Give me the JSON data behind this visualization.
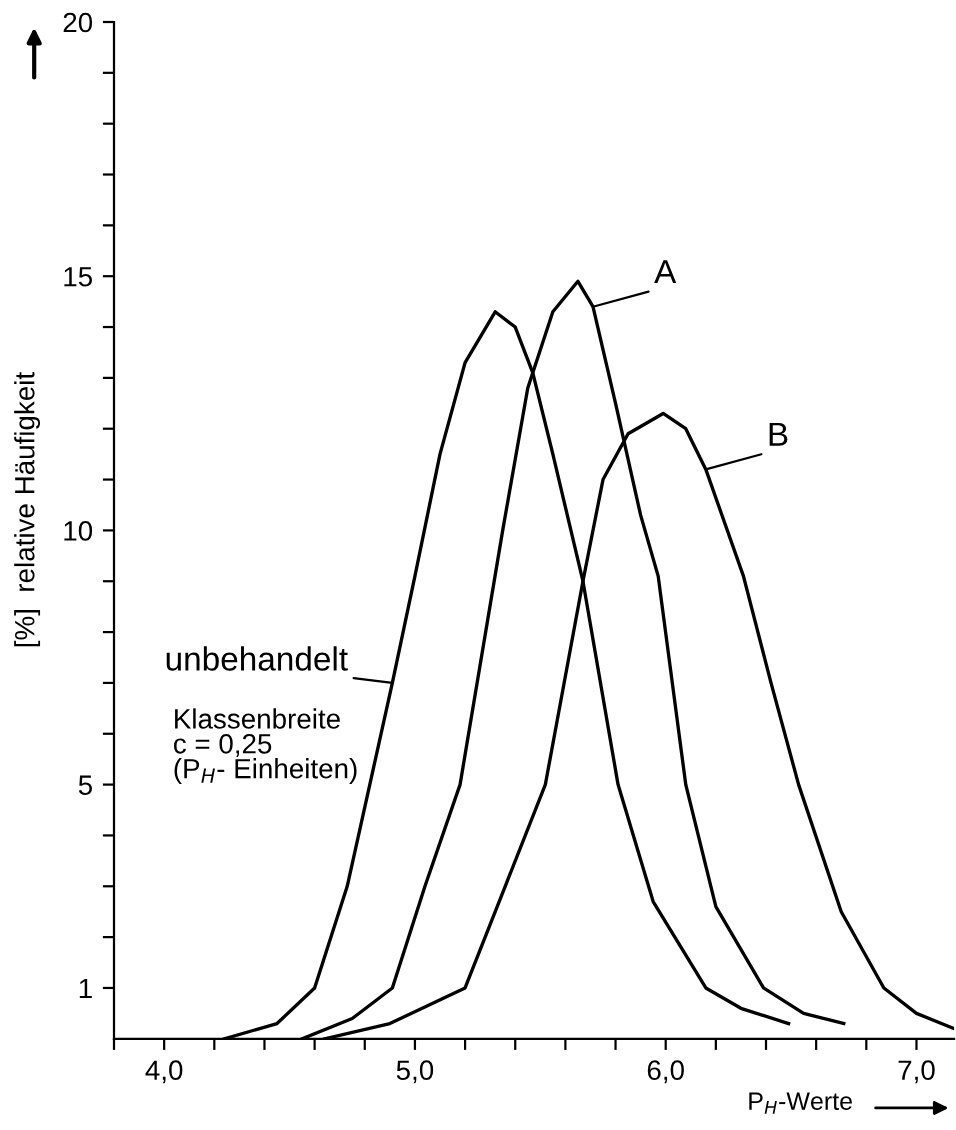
{
  "chart_data": {
    "type": "line",
    "xlabel": "P$_{H}$-Werte",
    "ylabel": "[%]  relative Häufigkeit",
    "annotations": [
      "Klassenbreite\nc = 0,25\n(P$_{H}$- Einheiten)"
    ],
    "xlim": [
      3.8,
      7.15
    ],
    "ylim": [
      0,
      20
    ],
    "xticks": [
      {
        "value": 3.8,
        "label": null
      },
      {
        "value": 4.0,
        "label": "4,0"
      },
      {
        "value": 4.2,
        "label": null
      },
      {
        "value": 4.4,
        "label": null
      },
      {
        "value": 4.6,
        "label": null
      },
      {
        "value": 4.8,
        "label": null
      },
      {
        "value": 5.0,
        "label": "5,0"
      },
      {
        "value": 5.2,
        "label": null
      },
      {
        "value": 5.4,
        "label": null
      },
      {
        "value": 5.6,
        "label": null
      },
      {
        "value": 5.8,
        "label": null
      },
      {
        "value": 6.0,
        "label": "6,0"
      },
      {
        "value": 6.2,
        "label": null
      },
      {
        "value": 6.4,
        "label": null
      },
      {
        "value": 6.6,
        "label": null
      },
      {
        "value": 6.8,
        "label": null
      },
      {
        "value": 7.0,
        "label": "7,0"
      }
    ],
    "yticks": [
      1,
      {
        "value": 2,
        "label": null
      },
      {
        "value": 3,
        "label": null
      },
      {
        "value": 4,
        "label": null
      },
      5,
      {
        "value": 6,
        "label": null
      },
      {
        "value": 7,
        "label": null
      },
      {
        "value": 8,
        "label": null
      },
      {
        "value": 9,
        "label": null
      },
      10,
      {
        "value": 11,
        "label": null
      },
      {
        "value": 12,
        "label": null
      },
      {
        "value": 13,
        "label": null
      },
      {
        "value": 14,
        "label": null
      },
      15,
      {
        "value": 16,
        "label": null
      },
      {
        "value": 17,
        "label": null
      },
      {
        "value": 18,
        "label": null
      },
      {
        "value": 19,
        "label": null
      },
      20
    ],
    "grid": false,
    "marker": "none",
    "line_style": "solid",
    "series": [
      {
        "name": "unbehandelt",
        "color": "#000000",
        "x": [
          4.24,
          4.45,
          4.6,
          4.73,
          4.82,
          4.91,
          5.0,
          5.1,
          5.2,
          5.32,
          5.4,
          5.47,
          5.55,
          5.67,
          5.81,
          5.95,
          6.16,
          6.3,
          6.49
        ],
        "values": [
          0,
          0.3,
          1,
          3,
          5,
          7,
          9.1,
          11.5,
          13.3,
          14.3,
          14.0,
          13.1,
          11.5,
          9,
          5,
          2.7,
          1,
          0.6,
          0.3
        ]
      },
      {
        "name": "A",
        "color": "#000000",
        "x": [
          4.55,
          4.75,
          4.91,
          5.04,
          5.18,
          5.35,
          5.45,
          5.55,
          5.65,
          5.71,
          5.8,
          5.9,
          5.97,
          6.08,
          6.2,
          6.39,
          6.55,
          6.71
        ],
        "values": [
          0,
          0.4,
          1,
          3,
          5,
          10,
          12.8,
          14.3,
          14.9,
          14.4,
          12.5,
          10.3,
          9.1,
          5,
          2.6,
          1,
          0.5,
          0.3
        ]
      },
      {
        "name": "B",
        "color": "#000000",
        "x": [
          4.64,
          4.9,
          5.2,
          5.36,
          5.52,
          5.67,
          5.75,
          5.85,
          5.99,
          6.08,
          6.16,
          6.31,
          6.42,
          6.53,
          6.7,
          6.87,
          7.0,
          7.15
        ],
        "values": [
          0,
          0.3,
          1,
          3,
          5,
          9,
          11,
          11.9,
          12.3,
          12.0,
          11.2,
          9.1,
          7,
          5,
          2.5,
          1,
          0.5,
          0.2
        ]
      }
    ]
  }
}
